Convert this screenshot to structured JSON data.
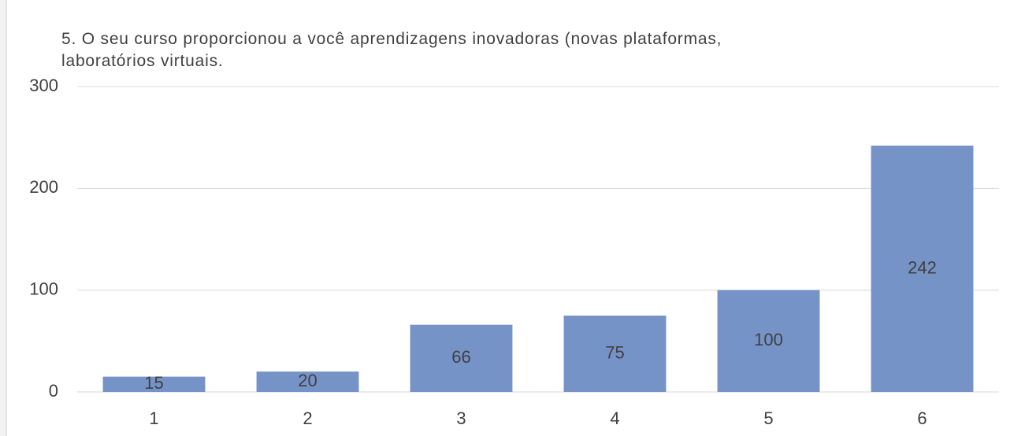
{
  "chart_data": {
    "type": "bar",
    "title": "5. O seu curso proporcionou a você aprendizagens inovadoras (novas plataformas, laboratórios virtuais.",
    "categories": [
      "1",
      "2",
      "3",
      "4",
      "5",
      "6"
    ],
    "values": [
      15,
      20,
      66,
      75,
      100,
      242
    ],
    "color": "#7693c7",
    "ylim": [
      0,
      300
    ],
    "yticks": [
      0,
      100,
      200,
      300
    ],
    "grid": true
  }
}
